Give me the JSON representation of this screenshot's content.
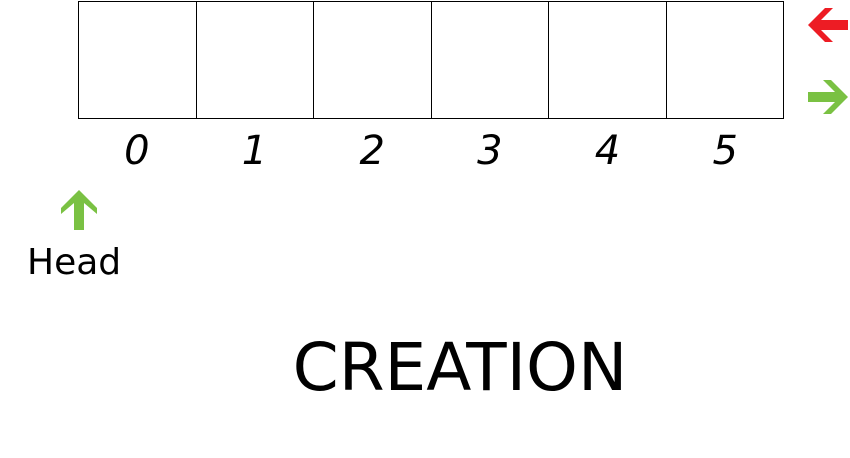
{
  "array": {
    "cells": [
      "",
      "",
      "",
      "",
      "",
      ""
    ],
    "indices": [
      "0",
      "1",
      "2",
      "3",
      "4",
      "5"
    ]
  },
  "pointers": {
    "head_label": "Head",
    "head_arrow_icon": "arrow-up-icon",
    "head_arrow_color": "#7ac143",
    "side_arrow_left_icon": "arrow-left-icon",
    "side_arrow_left_color": "#ed1c24",
    "side_arrow_right_icon": "arrow-right-icon",
    "side_arrow_right_color": "#7ac143"
  },
  "title": "CREATION"
}
